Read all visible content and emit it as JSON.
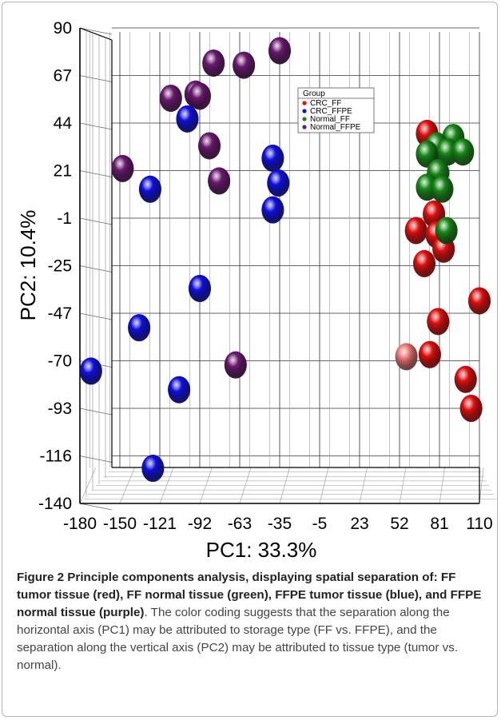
{
  "chart_data": {
    "type": "scatter",
    "subtype": "3d-pca",
    "xlabel": "PC1: 33.3%",
    "ylabel": "PC2: 10.4%",
    "x_ticks": [
      "-180",
      "-150",
      "-121",
      "-92",
      "-63",
      "-35",
      "-5",
      "23",
      "52",
      "81",
      "110"
    ],
    "y_ticks": [
      "90",
      "67",
      "44",
      "21",
      "-1",
      "-25",
      "-47",
      "-70",
      "-93",
      "-116",
      "-140"
    ],
    "xlim": [
      -180,
      110
    ],
    "ylim": [
      -140,
      90
    ],
    "grid": true,
    "legend_position": "top-right",
    "legend_title": "Group",
    "series": [
      {
        "name": "CRC_FF",
        "color": "#e01010",
        "points": [
          {
            "x": 72,
            "y": 39
          },
          {
            "x": 77,
            "y": 0
          },
          {
            "x": 64,
            "y": -8
          },
          {
            "x": 79,
            "y": -10
          },
          {
            "x": 84,
            "y": -17
          },
          {
            "x": 70,
            "y": -24
          },
          {
            "x": 110,
            "y": -42
          },
          {
            "x": 80,
            "y": -52
          },
          {
            "x": 74,
            "y": -68
          },
          {
            "x": 100,
            "y": -80
          },
          {
            "x": 104,
            "y": -94
          }
        ]
      },
      {
        "name": "CRC_FFPE",
        "color": "#1010e0",
        "points": [
          {
            "x": -102,
            "y": 46
          },
          {
            "x": -40,
            "y": 27
          },
          {
            "x": -36,
            "y": 15
          },
          {
            "x": -40,
            "y": 2
          },
          {
            "x": -129,
            "y": 12
          },
          {
            "x": -93,
            "y": -36
          },
          {
            "x": -137,
            "y": -55
          },
          {
            "x": -172,
            "y": -76
          },
          {
            "x": -108,
            "y": -85
          },
          {
            "x": -127,
            "y": -123
          }
        ]
      },
      {
        "name": "Normal_FF",
        "color": "#1a8a1a",
        "points": [
          {
            "x": 91,
            "y": 37
          },
          {
            "x": 79,
            "y": 33
          },
          {
            "x": 87,
            "y": 30
          },
          {
            "x": 98,
            "y": 30
          },
          {
            "x": 72,
            "y": 29
          },
          {
            "x": 80,
            "y": 20
          },
          {
            "x": 72,
            "y": 13
          },
          {
            "x": 83,
            "y": 12
          },
          {
            "x": 86,
            "y": -8
          }
        ]
      },
      {
        "name": "Normal_FFPE",
        "color": "#6a1a70",
        "points": [
          {
            "x": -35,
            "y": 79
          },
          {
            "x": -83,
            "y": 73
          },
          {
            "x": -61,
            "y": 72
          },
          {
            "x": -96,
            "y": 58
          },
          {
            "x": -93,
            "y": 57
          },
          {
            "x": -114,
            "y": 56
          },
          {
            "x": -86,
            "y": 33
          },
          {
            "x": -149,
            "y": 22
          },
          {
            "x": -79,
            "y": 16
          },
          {
            "x": -67,
            "y": -73
          }
        ]
      },
      {
        "name": "",
        "color": "#f07878",
        "points": [
          {
            "x": 57,
            "y": -69
          }
        ]
      }
    ]
  },
  "caption": {
    "figure_label": "Figure 2",
    "bold_text": " Principle components analysis, displaying spatial separation of: FF tumor tissue (red), FF normal tissue (green), FFPE tumor tissue (blue), and FFPE normal tissue (purple)",
    "body_text": ". The color coding suggests that the separation along the horizontal axis (PC1) may be attributed to storage type (FF vs. FFPE), and the separation along the vertical axis (PC2) may be attributed to tissue type (tumor vs. normal)."
  }
}
